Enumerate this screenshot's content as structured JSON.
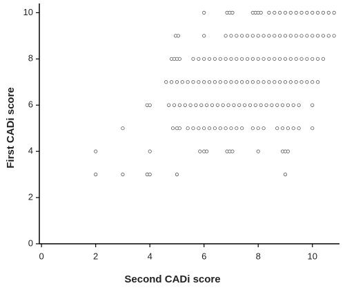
{
  "chart_data": {
    "type": "scatter",
    "x_label": "Second CADi score",
    "y_label": "First CADi score",
    "color": "#555555",
    "xlim": [
      -0.08,
      11
    ],
    "xticks": [
      0,
      2,
      4,
      6,
      8,
      10
    ],
    "ylim": [
      0,
      10.4
    ],
    "yticks": [
      0,
      2,
      4,
      6,
      8,
      10
    ],
    "grid": false,
    "x": [
      6,
      6.85,
      6.95,
      7.05,
      7.8,
      7.9,
      8,
      8.1,
      8.4,
      8.6,
      8.8,
      9,
      9.2,
      9.4,
      9.6,
      9.8,
      10,
      10.2,
      10.4,
      10.6,
      10.8,
      4.95,
      5.05,
      6,
      6.8,
      7,
      7.2,
      7.4,
      7.6,
      7.8,
      8,
      8.2,
      8.4,
      8.6,
      8.8,
      9,
      9.2,
      9.4,
      9.6,
      9.8,
      10,
      10.2,
      10.4,
      10.6,
      10.8,
      4.8,
      4.9,
      5,
      5.1,
      5.6,
      5.8,
      6,
      6.2,
      6.4,
      6.6,
      6.8,
      7,
      7.2,
      7.4,
      7.6,
      7.8,
      8,
      8.2,
      8.4,
      8.6,
      8.8,
      9,
      9.2,
      9.4,
      9.6,
      9.8,
      10,
      10.2,
      10.4,
      4.6,
      4.8,
      5,
      5.2,
      5.4,
      5.6,
      5.8,
      6,
      6.2,
      6.4,
      6.6,
      6.8,
      7,
      7.2,
      7.4,
      7.6,
      7.8,
      8,
      8.2,
      8.4,
      8.6,
      8.8,
      9,
      9.2,
      9.4,
      9.6,
      9.8,
      10,
      10.2,
      3.9,
      4,
      4.7,
      4.9,
      5.1,
      5.3,
      5.5,
      5.7,
      5.9,
      6.1,
      6.3,
      6.5,
      6.7,
      6.9,
      7.1,
      7.3,
      7.5,
      7.7,
      7.9,
      8.1,
      8.3,
      8.5,
      8.7,
      8.9,
      9.1,
      9.3,
      9.5,
      10,
      3,
      4.85,
      5,
      5.1,
      5.4,
      5.6,
      5.8,
      6,
      6.2,
      6.4,
      6.6,
      6.8,
      7,
      7.2,
      7.4,
      7.8,
      8,
      8.2,
      8.7,
      8.9,
      9.1,
      9.3,
      9.5,
      10,
      2,
      4,
      5.85,
      6,
      6.1,
      6.85,
      6.95,
      7.05,
      8,
      8.9,
      9,
      9.1,
      2,
      3,
      3.9,
      4,
      5,
      9
    ],
    "values": [
      10,
      10,
      10,
      10,
      10,
      10,
      10,
      10,
      10,
      10,
      10,
      10,
      10,
      10,
      10,
      10,
      10,
      10,
      10,
      10,
      10,
      9,
      9,
      9,
      9,
      9,
      9,
      9,
      9,
      9,
      9,
      9,
      9,
      9,
      9,
      9,
      9,
      9,
      9,
      9,
      9,
      9,
      9,
      9,
      9,
      8,
      8,
      8,
      8,
      8,
      8,
      8,
      8,
      8,
      8,
      8,
      8,
      8,
      8,
      8,
      8,
      8,
      8,
      8,
      8,
      8,
      8,
      8,
      8,
      8,
      8,
      8,
      8,
      8,
      7,
      7,
      7,
      7,
      7,
      7,
      7,
      7,
      7,
      7,
      7,
      7,
      7,
      7,
      7,
      7,
      7,
      7,
      7,
      7,
      7,
      7,
      7,
      7,
      7,
      7,
      7,
      7,
      7,
      6,
      6,
      6,
      6,
      6,
      6,
      6,
      6,
      6,
      6,
      6,
      6,
      6,
      6,
      6,
      6,
      6,
      6,
      6,
      6,
      6,
      6,
      6,
      6,
      6,
      6,
      6,
      6,
      5,
      5,
      5,
      5,
      5,
      5,
      5,
      5,
      5,
      5,
      5,
      5,
      5,
      5,
      5,
      5,
      5,
      5,
      5,
      5,
      5,
      5,
      5,
      5,
      4,
      4,
      4,
      4,
      4,
      4,
      4,
      4,
      4,
      4,
      4,
      4,
      3,
      3,
      3,
      3,
      3,
      3
    ]
  }
}
